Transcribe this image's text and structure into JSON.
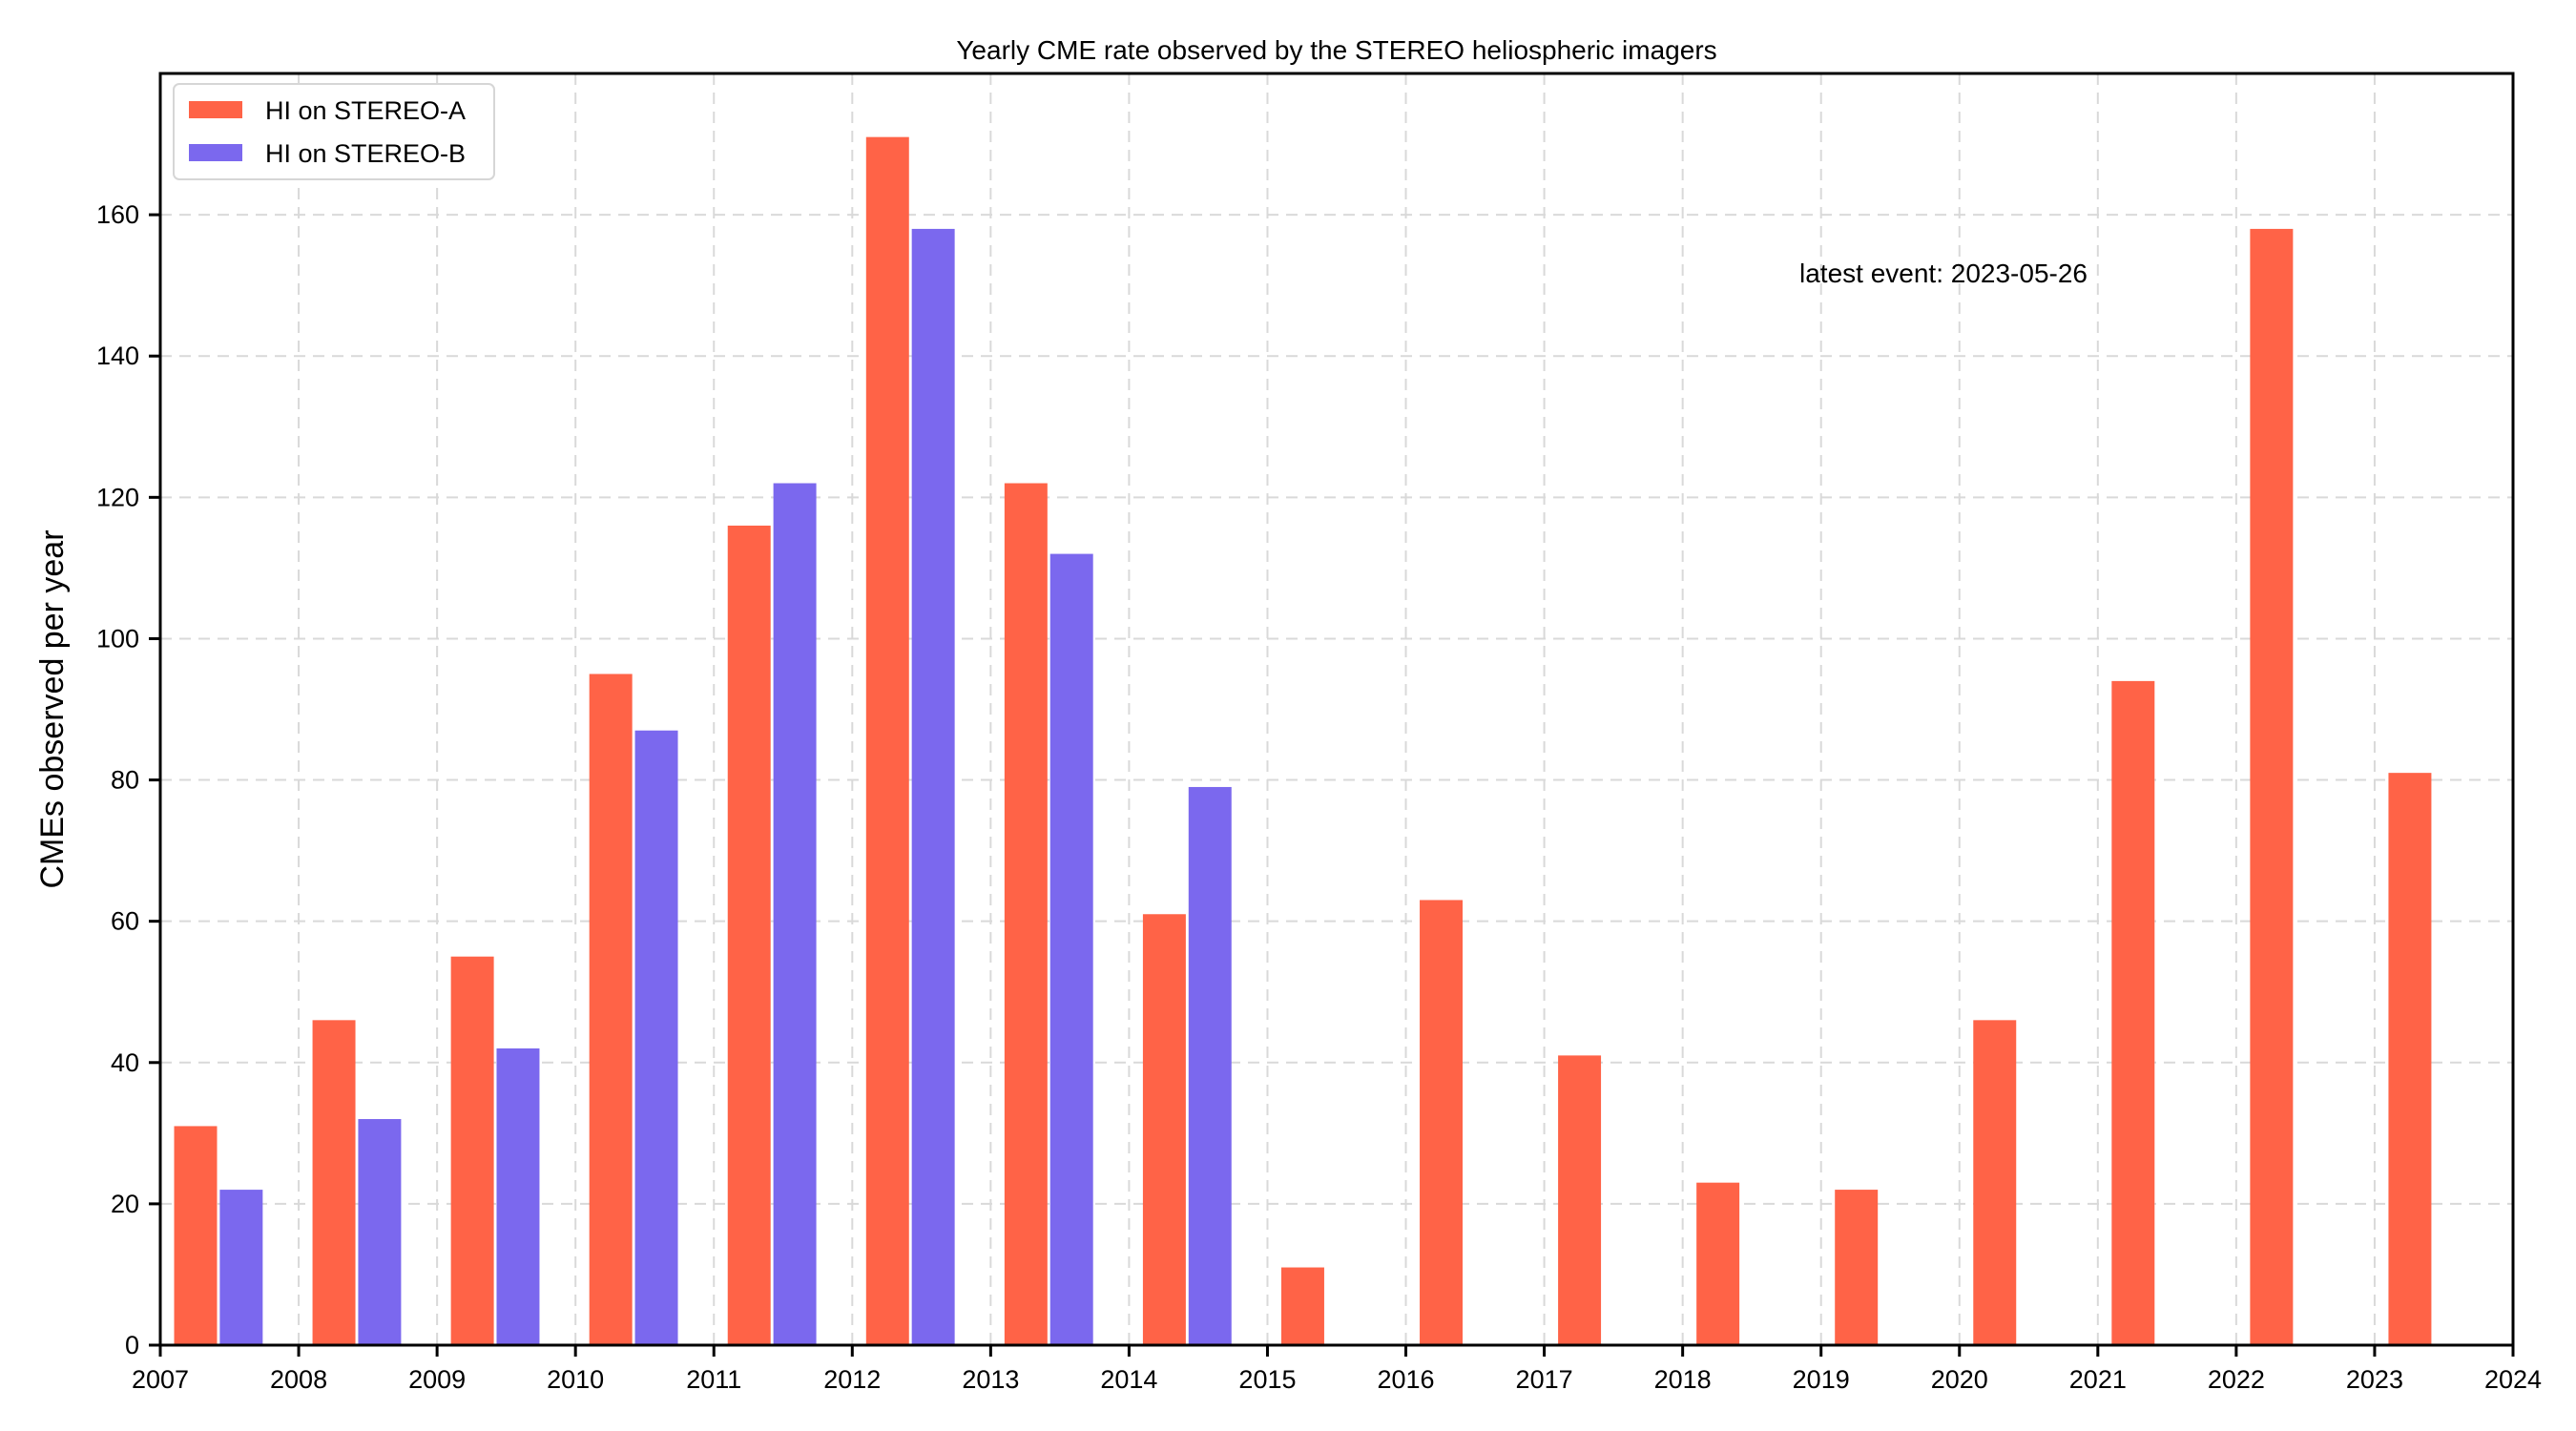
{
  "chart_data": {
    "type": "bar",
    "title": "Yearly CME rate observed by the STEREO heliospheric imagers",
    "xlabel": "",
    "ylabel": "CMEs observed per year",
    "x_ticks": [
      "2007",
      "2008",
      "2009",
      "2010",
      "2011",
      "2012",
      "2013",
      "2014",
      "2015",
      "2016",
      "2017",
      "2018",
      "2019",
      "2020",
      "2021",
      "2022",
      "2023",
      "2024"
    ],
    "y_ticks": [
      0,
      20,
      40,
      60,
      80,
      100,
      120,
      140,
      160
    ],
    "ylim": [
      0,
      180
    ],
    "xlim": [
      2007,
      2024
    ],
    "grid": true,
    "legend_position": "top-left",
    "annotation": "latest event: 2023-05-26",
    "categories": [
      "2007",
      "2008",
      "2009",
      "2010",
      "2011",
      "2012",
      "2013",
      "2014",
      "2015",
      "2016",
      "2017",
      "2018",
      "2019",
      "2020",
      "2021",
      "2022",
      "2023"
    ],
    "series": [
      {
        "name": "HI on STEREO-A",
        "color": "#ff6347",
        "values": [
          31,
          46,
          55,
          95,
          116,
          171,
          122,
          61,
          11,
          63,
          41,
          23,
          22,
          46,
          94,
          158,
          81
        ]
      },
      {
        "name": "HI on STEREO-B",
        "color": "#7b68ee",
        "values": [
          22,
          32,
          42,
          87,
          122,
          158,
          112,
          79,
          null,
          null,
          null,
          null,
          null,
          null,
          null,
          null,
          null
        ]
      }
    ]
  }
}
